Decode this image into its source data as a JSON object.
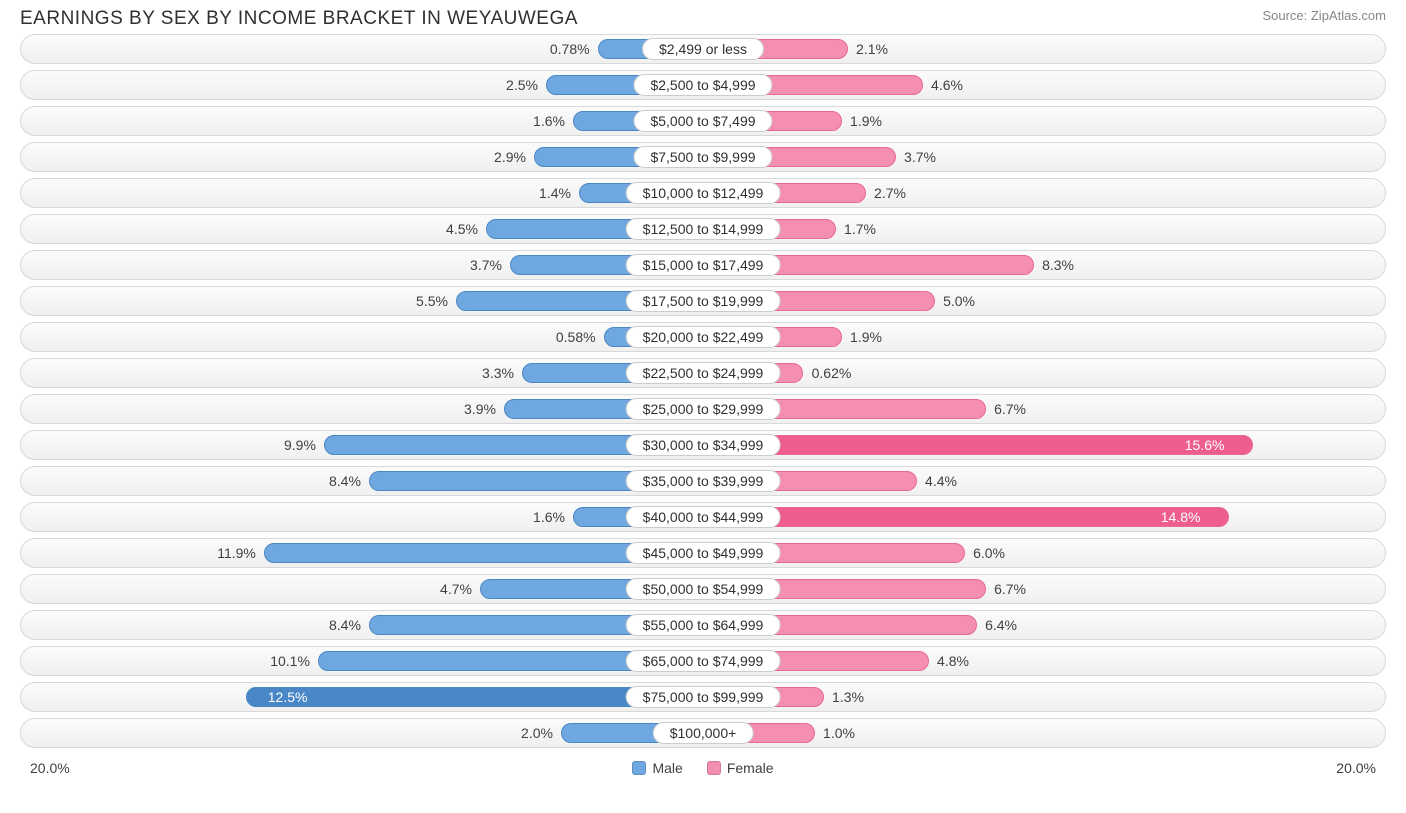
{
  "title": "EARNINGS BY SEX BY INCOME BRACKET IN WEYAUWEGA",
  "source_label": "Source: ",
  "source_name": "ZipAtlas.com",
  "axis_max_label": "20.0%",
  "axis_max_value": 20.0,
  "colors": {
    "male_fill": "#6fa8e0",
    "male_border": "#4a87c7",
    "male_strong_fill": "#4a87c7",
    "female_fill": "#f58fb0",
    "female_border": "#e86a93",
    "female_strong_fill": "#ed5e8e",
    "track_border": "#d8d8d8",
    "text": "#303030",
    "source_text": "#888888"
  },
  "legend": {
    "male": "Male",
    "female": "Female"
  },
  "center_label_halfwidth_pct": 6.0,
  "rows": [
    {
      "label": "$2,499 or less",
      "male": 0.78,
      "male_txt": "0.78%",
      "female": 2.1,
      "female_txt": "2.1%"
    },
    {
      "label": "$2,500 to $4,999",
      "male": 2.5,
      "male_txt": "2.5%",
      "female": 4.6,
      "female_txt": "4.6%"
    },
    {
      "label": "$5,000 to $7,499",
      "male": 1.6,
      "male_txt": "1.6%",
      "female": 1.9,
      "female_txt": "1.9%"
    },
    {
      "label": "$7,500 to $9,999",
      "male": 2.9,
      "male_txt": "2.9%",
      "female": 3.7,
      "female_txt": "3.7%"
    },
    {
      "label": "$10,000 to $12,499",
      "male": 1.4,
      "male_txt": "1.4%",
      "female": 2.7,
      "female_txt": "2.7%"
    },
    {
      "label": "$12,500 to $14,999",
      "male": 4.5,
      "male_txt": "4.5%",
      "female": 1.7,
      "female_txt": "1.7%"
    },
    {
      "label": "$15,000 to $17,499",
      "male": 3.7,
      "male_txt": "3.7%",
      "female": 8.3,
      "female_txt": "8.3%"
    },
    {
      "label": "$17,500 to $19,999",
      "male": 5.5,
      "male_txt": "5.5%",
      "female": 5.0,
      "female_txt": "5.0%"
    },
    {
      "label": "$20,000 to $22,499",
      "male": 0.58,
      "male_txt": "0.58%",
      "female": 1.9,
      "female_txt": "1.9%"
    },
    {
      "label": "$22,500 to $24,999",
      "male": 3.3,
      "male_txt": "3.3%",
      "female": 0.62,
      "female_txt": "0.62%"
    },
    {
      "label": "$25,000 to $29,999",
      "male": 3.9,
      "male_txt": "3.9%",
      "female": 6.7,
      "female_txt": "6.7%"
    },
    {
      "label": "$30,000 to $34,999",
      "male": 9.9,
      "male_txt": "9.9%",
      "female": 15.6,
      "female_txt": "15.6%"
    },
    {
      "label": "$35,000 to $39,999",
      "male": 8.4,
      "male_txt": "8.4%",
      "female": 4.4,
      "female_txt": "4.4%"
    },
    {
      "label": "$40,000 to $44,999",
      "male": 1.6,
      "male_txt": "1.6%",
      "female": 14.8,
      "female_txt": "14.8%"
    },
    {
      "label": "$45,000 to $49,999",
      "male": 11.9,
      "male_txt": "11.9%",
      "female": 6.0,
      "female_txt": "6.0%"
    },
    {
      "label": "$50,000 to $54,999",
      "male": 4.7,
      "male_txt": "4.7%",
      "female": 6.7,
      "female_txt": "6.7%"
    },
    {
      "label": "$55,000 to $64,999",
      "male": 8.4,
      "male_txt": "8.4%",
      "female": 6.4,
      "female_txt": "6.4%"
    },
    {
      "label": "$65,000 to $74,999",
      "male": 10.1,
      "male_txt": "10.1%",
      "female": 4.8,
      "female_txt": "4.8%"
    },
    {
      "label": "$75,000 to $99,999",
      "male": 12.5,
      "male_txt": "12.5%",
      "female": 1.3,
      "female_txt": "1.3%"
    },
    {
      "label": "$100,000+",
      "male": 2.0,
      "male_txt": "2.0%",
      "female": 1.0,
      "female_txt": "1.0%"
    }
  ]
}
